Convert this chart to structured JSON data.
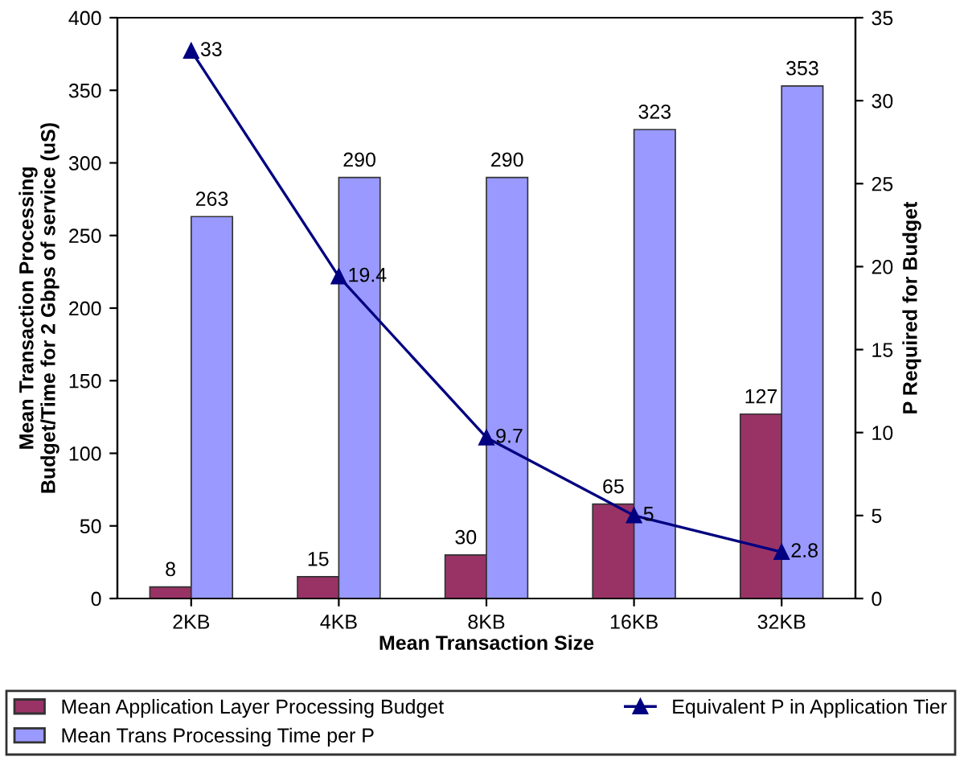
{
  "chart_data": {
    "type": "bar",
    "xlabel": "Mean Transaction Size",
    "ylabel": "Mean Transaction Processing\nBudget/Time for 2 Gbps of service (uS)",
    "y2label": "P Required for Budget",
    "categories": [
      "2KB",
      "4KB",
      "8KB",
      "16KB",
      "32KB"
    ],
    "series": [
      {
        "name": "Mean Application Layer Processing Budget",
        "color": "#993366",
        "values": [
          8,
          15,
          30,
          65,
          127
        ]
      },
      {
        "name": "Mean Trans Processing Time per P",
        "color": "#9999ff",
        "values": [
          263,
          290,
          290,
          323,
          353
        ]
      },
      {
        "name": "Equivalent P in Application Tier",
        "color": "#000080",
        "type": "line",
        "axis": "y2",
        "marker": "triangle",
        "values": [
          33,
          19.4,
          9.7,
          5,
          2.8
        ]
      }
    ],
    "ylim": [
      0,
      400
    ],
    "yticks": [
      0,
      50,
      100,
      150,
      200,
      250,
      300,
      350,
      400
    ],
    "y2lim": [
      0,
      35
    ],
    "y2ticks": [
      0,
      5,
      10,
      15,
      20,
      25,
      30,
      35
    ],
    "data_labels": true,
    "grid": false,
    "legend": "bottom"
  }
}
